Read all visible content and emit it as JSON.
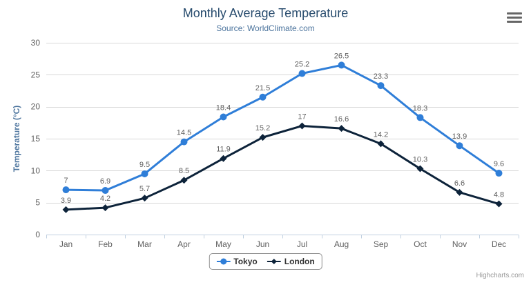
{
  "chart_data": {
    "type": "line",
    "title": "Monthly Average Temperature",
    "subtitle": "Source: WorldClimate.com",
    "xlabel": "",
    "ylabel": "Temperature (°C)",
    "ylim": [
      0,
      30
    ],
    "ytick_interval": 5,
    "grid": true,
    "data_labels": true,
    "legend_position": "bottom-center",
    "categories": [
      "Jan",
      "Feb",
      "Mar",
      "Apr",
      "May",
      "Jun",
      "Jul",
      "Aug",
      "Sep",
      "Oct",
      "Nov",
      "Dec"
    ],
    "series": [
      {
        "name": "Tokyo",
        "color": "#2f7ed8",
        "marker": "circle",
        "values": [
          7,
          6.9,
          9.5,
          14.5,
          18.4,
          21.5,
          25.2,
          26.5,
          23.3,
          18.3,
          13.9,
          9.6
        ]
      },
      {
        "name": "London",
        "color": "#0d233a",
        "marker": "diamond",
        "values": [
          3.9,
          4.2,
          5.7,
          8.5,
          11.9,
          15.2,
          17,
          16.6,
          14.2,
          10.3,
          6.6,
          4.8
        ]
      }
    ],
    "credits": "Highcharts.com"
  },
  "icons": {
    "context_menu": "hamburger-icon"
  },
  "colors": {
    "title": "#274b6d",
    "subtitle": "#4d759e",
    "y_axis_title": "#4d759e",
    "axis_label": "#606060",
    "data_label": "#606060",
    "gridline": "#d8d8d8",
    "axis_line": "#c0d0e0",
    "legend_text": "#333333",
    "credits": "#999999",
    "menu_icon": "#666666"
  }
}
